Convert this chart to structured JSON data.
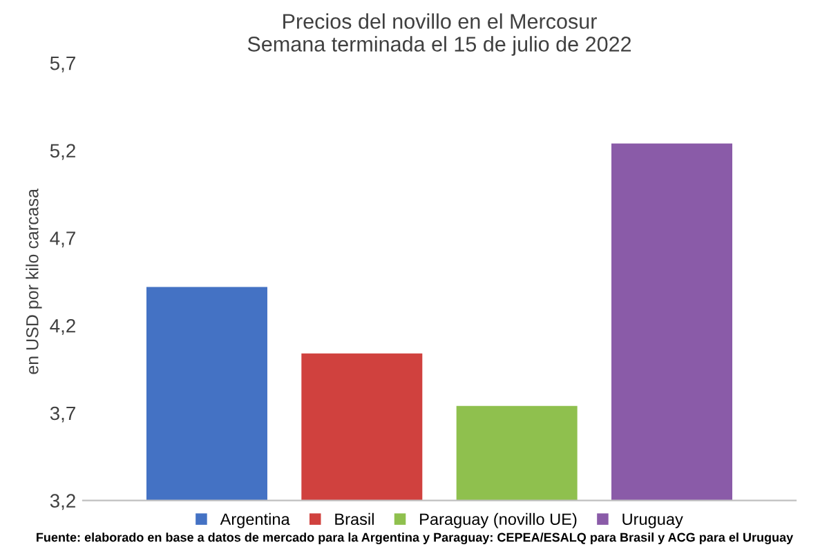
{
  "chart_data": {
    "type": "bar",
    "title": "Precios del novillo en el Mercosur\nSemana terminada el 15 de julio de 2022",
    "ylabel": "en USD por kilo carcasa",
    "categories": [
      null,
      null,
      null,
      null
    ],
    "series": [
      {
        "name": "Argentina",
        "color": "#4472c4",
        "values": [
          4.42,
          null,
          null,
          null
        ]
      },
      {
        "name": "Brasil",
        "color": "#d0413e",
        "values": [
          null,
          4.04,
          null,
          null
        ]
      },
      {
        "name": "Paraguay (novillo UE)",
        "color": "#8fc04e",
        "values": [
          null,
          null,
          3.74,
          null
        ]
      },
      {
        "name": "Uruguay",
        "color": "#8a5ba8",
        "values": [
          null,
          null,
          null,
          5.24
        ]
      }
    ],
    "ylim": [
      3.2,
      5.7
    ],
    "yticks": [
      {
        "value": 3.2,
        "label": "3,2"
      },
      {
        "value": 3.7,
        "label": "3,7"
      },
      {
        "value": 4.2,
        "label": "4,2"
      },
      {
        "value": 4.7,
        "label": "4,7"
      },
      {
        "value": 5.2,
        "label": "5,2"
      },
      {
        "value": 5.7,
        "label": "5,7"
      }
    ],
    "legend": "bottom",
    "annotations": [
      "Fuente: elaborado en base a datos de mercado para la Argentina y Paraguay: CEPEA/ESALQ para Brasil y ACG para el Uruguay"
    ]
  }
}
